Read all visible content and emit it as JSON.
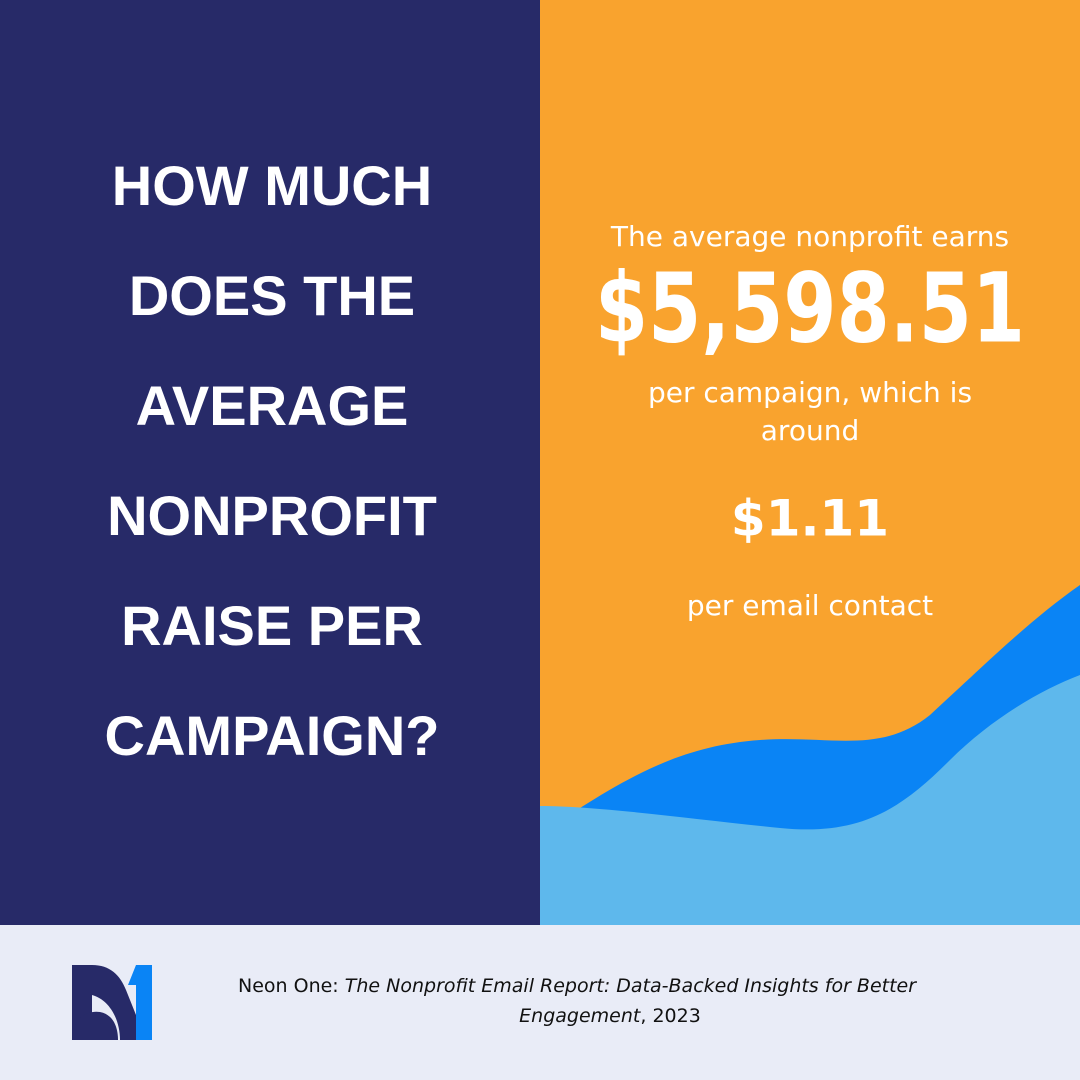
{
  "question": {
    "lines": [
      "HOW MUCH",
      "DOES THE",
      "AVERAGE",
      "NONPROFIT",
      "RAISE PER",
      "CAMPAIGN?"
    ]
  },
  "stat": {
    "intro": "The average nonprofit earns",
    "amount": "$5,598.51",
    "middle_lines": [
      "per campaign, which is",
      "around"
    ],
    "per_contact": "$1.11",
    "outro": "per email contact"
  },
  "source": {
    "publisher": "Neon One:",
    "title_lines": [
      "The Nonprofit Email Report: Data-Backed Insights for Better",
      "Engagement"
    ],
    "year": ", 2023"
  }
}
